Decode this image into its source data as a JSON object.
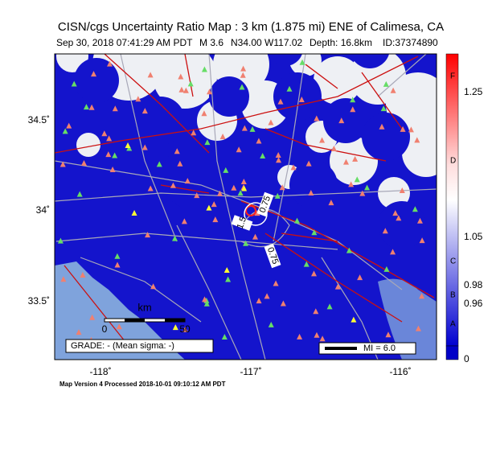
{
  "header": {
    "title": "CISN/cgs Uncertainty Ratio Map : 3 km (1.875 mi) ENE of Calimesa, CA",
    "subtitle": [
      "Sep 30, 2018 07:41:29 AM PDT",
      "M 3.6",
      "N34.00 W117.02",
      "Depth: 16.8km",
      "ID:37374890"
    ]
  },
  "map": {
    "lat_ticks": [
      "34.5˚",
      "34˚",
      "33.5˚"
    ],
    "lon_ticks": [
      "-118˚",
      "-117˚",
      "-116˚"
    ],
    "contour_labels": [
      "1.5",
      "0.75",
      "0.75"
    ],
    "scale": {
      "unit": "km",
      "labels": [
        "0",
        "50"
      ]
    },
    "grade_box": "GRADE: - (Mean sigma: -)",
    "mi_box": "MI = 6.0"
  },
  "colorbar": {
    "labels": [
      "F",
      "1.25",
      "D",
      "1.05",
      "C",
      "0.98",
      "B",
      "0.96",
      "A",
      "0"
    ]
  },
  "footer": "Map Version 4 Processed 2018-10-01 09:10:12 AM PDT"
}
